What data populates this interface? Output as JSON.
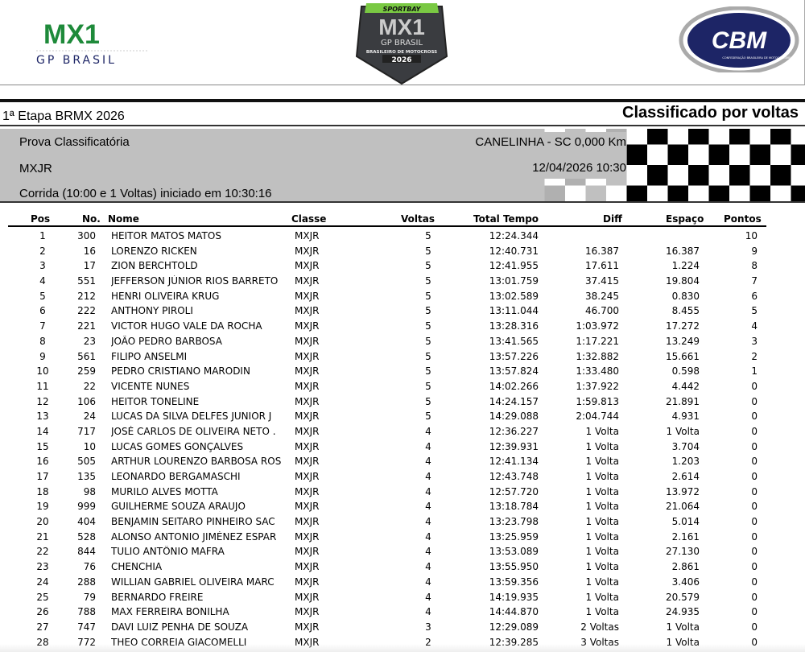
{
  "logos": {
    "left": {
      "line1": "MX1",
      "line2": "GP BRASIL"
    },
    "center": {
      "top": "SPORTBAY",
      "main": "MX1",
      "sub": "GP BRASIL",
      "ribbon": "BRASILEIRO DE MOTOCROSS",
      "year": "2026"
    },
    "right": {
      "main": "CBM",
      "sub": "CONFEDERAÇÃO BRASILEIRA DE MOTOCICLISMO"
    },
    "colors": {
      "green": "#1e8a3a",
      "yellow": "#f2d600",
      "navy": "#1d2566",
      "shield": "#3a3c40"
    }
  },
  "header": {
    "event": "1ª Etapa BRMX 2026",
    "sort_label": "Classificado por voltas",
    "session": "Prova Classificatória",
    "class": "MXJR",
    "race_info": "Corrida (10:00 e 1 Voltas) iniciado em 10:30:16",
    "location": "CANELINHA - SC 0,000 Km",
    "datetime": "12/04/2026 10:30"
  },
  "table": {
    "columns": {
      "pos": "Pos",
      "no": "No.",
      "nome": "Nome",
      "classe": "Classe",
      "voltas": "Voltas",
      "total": "Total Tempo",
      "diff": "Diff",
      "espaco": "Espaço",
      "pontos": "Pontos"
    },
    "rows": [
      [
        "1",
        "300",
        "HEITOR  MATOS MATOS",
        "MXJR",
        "5",
        "12:24.344",
        "",
        "",
        "10"
      ],
      [
        "2",
        "16",
        "LORENZO RICKEN",
        "MXJR",
        "5",
        "12:40.731",
        "16.387",
        "16.387",
        "9"
      ],
      [
        "3",
        "17",
        "ZION BERCHTOLD",
        "MXJR",
        "5",
        "12:41.955",
        "17.611",
        "1.224",
        "8"
      ],
      [
        "4",
        "551",
        "JEFFERSON JÚNIOR RIOS BARRETO",
        "MXJR",
        "5",
        "13:01.759",
        "37.415",
        "19.804",
        "7"
      ],
      [
        "5",
        "212",
        "HENRI OLIVEIRA KRUG",
        "MXJR",
        "5",
        "13:02.589",
        "38.245",
        "0.830",
        "6"
      ],
      [
        "6",
        "222",
        "ANTHONY PIROLI",
        "MXJR",
        "5",
        "13:11.044",
        "46.700",
        "8.455",
        "5"
      ],
      [
        "7",
        "221",
        "VICTOR HUGO VALE DA ROCHA",
        "MXJR",
        "5",
        "13:28.316",
        "1:03.972",
        "17.272",
        "4"
      ],
      [
        "8",
        "23",
        "JOÃO PEDRO BARBOSA",
        "MXJR",
        "5",
        "13:41.565",
        "1:17.221",
        "13.249",
        "3"
      ],
      [
        "9",
        "561",
        "FILIPO ANSELMI",
        "MXJR",
        "5",
        "13:57.226",
        "1:32.882",
        "15.661",
        "2"
      ],
      [
        "10",
        "259",
        "PEDRO CRISTIANO MARODIN",
        "MXJR",
        "5",
        "13:57.824",
        "1:33.480",
        "0.598",
        "1"
      ],
      [
        "11",
        "22",
        "VICENTE NUNES",
        "MXJR",
        "5",
        "14:02.266",
        "1:37.922",
        "4.442",
        "0"
      ],
      [
        "12",
        "106",
        "HEITOR TONELINE",
        "MXJR",
        "5",
        "14:24.157",
        "1:59.813",
        "21.891",
        "0"
      ],
      [
        "13",
        "24",
        "LUCAS DA SILVA DELFES JUNIOR J",
        "MXJR",
        "5",
        "14:29.088",
        "2:04.744",
        "4.931",
        "0"
      ],
      [
        "14",
        "717",
        "JOSÉ CARLOS DE OLIVEIRA NETO .",
        "MXJR",
        "4",
        "12:36.227",
        "1 Volta",
        "1 Volta",
        "0"
      ],
      [
        "15",
        "10",
        "LUCAS GOMES GONÇALVES",
        "MXJR",
        "4",
        "12:39.931",
        "1 Volta",
        "3.704",
        "0"
      ],
      [
        "16",
        "505",
        "ARTHUR LOURENZO BARBOSA ROS",
        "MXJR",
        "4",
        "12:41.134",
        "1 Volta",
        "1.203",
        "0"
      ],
      [
        "17",
        "135",
        "LEONARDO BERGAMASCHI",
        "MXJR",
        "4",
        "12:43.748",
        "1 Volta",
        "2.614",
        "0"
      ],
      [
        "18",
        "98",
        "MURILO ALVES MOTTA",
        "MXJR",
        "4",
        "12:57.720",
        "1 Volta",
        "13.972",
        "0"
      ],
      [
        "19",
        "999",
        "GUILHERME SOUZA ARAUJO",
        "MXJR",
        "4",
        "13:18.784",
        "1 Volta",
        "21.064",
        "0"
      ],
      [
        "20",
        "404",
        "BENJAMIN SEITARO PINHEIRO SAC",
        "MXJR",
        "4",
        "13:23.798",
        "1 Volta",
        "5.014",
        "0"
      ],
      [
        "21",
        "528",
        "ALONSO ANTONIO JIMÉNEZ ESPAR",
        "MXJR",
        "4",
        "13:25.959",
        "1 Volta",
        "2.161",
        "0"
      ],
      [
        "22",
        "844",
        "TULIO ANTÔNIO MAFRA",
        "MXJR",
        "4",
        "13:53.089",
        "1 Volta",
        "27.130",
        "0"
      ],
      [
        "23",
        "76",
        "CHENCHIA",
        "MXJR",
        "4",
        "13:55.950",
        "1 Volta",
        "2.861",
        "0"
      ],
      [
        "24",
        "288",
        "WILLIAN GABRIEL OLIVEIRA MARC",
        "MXJR",
        "4",
        "13:59.356",
        "1 Volta",
        "3.406",
        "0"
      ],
      [
        "25",
        "79",
        "BERNARDO FREIRE",
        "MXJR",
        "4",
        "14:19.935",
        "1 Volta",
        "20.579",
        "0"
      ],
      [
        "26",
        "788",
        "MAX FERREIRA BONILHA",
        "MXJR",
        "4",
        "14:44.870",
        "1 Volta",
        "24.935",
        "0"
      ],
      [
        "27",
        "747",
        "DAVI LUIZ PENHA DE SOUZA",
        "MXJR",
        "3",
        "12:29.089",
        "2 Voltas",
        "1 Volta",
        "0"
      ],
      [
        "28",
        "772",
        "THEO CORREIA GIACOMELLI",
        "MXJR",
        "2",
        "12:39.285",
        "3 Voltas",
        "1 Volta",
        "0"
      ]
    ]
  }
}
